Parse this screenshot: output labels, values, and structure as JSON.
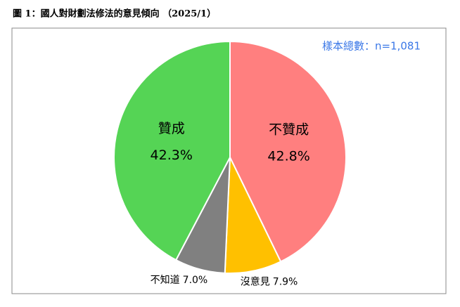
{
  "chart_data": {
    "type": "pie",
    "title": "圖 1：國人對財劃法修法的意見傾向 （2025/1）",
    "annotation": "樣本總數：n=1,081",
    "categories": [
      "不贊成",
      "沒意見",
      "不知道",
      "贊成"
    ],
    "values": [
      42.8,
      7.9,
      7.0,
      42.3
    ],
    "value_labels": [
      "42.8%",
      "7.9%",
      "7.0%",
      "42.3%"
    ],
    "colors": [
      "#ff7f7f",
      "#ffc000",
      "#808080",
      "#55d455"
    ]
  }
}
